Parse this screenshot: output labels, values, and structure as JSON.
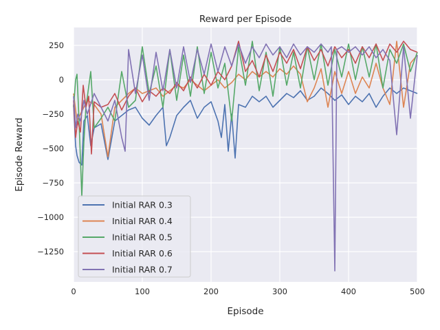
{
  "chart_data": {
    "type": "line",
    "title": "Reward per Episode",
    "xlabel": "Episode",
    "ylabel": "Episode Reward",
    "xlim": [
      0,
      500
    ],
    "ylim": [
      -1470,
      380
    ],
    "xticks": [
      0,
      100,
      200,
      300,
      400,
      500
    ],
    "yticks": [
      250,
      0,
      -250,
      -500,
      -750,
      -1000,
      -1250
    ],
    "grid": true,
    "legend_position": "lower-left",
    "background": "#eaeaf2",
    "series": [
      {
        "name": "Initial RAR 0.3",
        "color": "#4c72b0",
        "points": [
          [
            0,
            -180
          ],
          [
            3,
            -480
          ],
          [
            5,
            -550
          ],
          [
            8,
            -600
          ],
          [
            12,
            -620
          ],
          [
            15,
            -300
          ],
          [
            20,
            -260
          ],
          [
            25,
            -480
          ],
          [
            30,
            -350
          ],
          [
            40,
            -320
          ],
          [
            50,
            -580
          ],
          [
            60,
            -300
          ],
          [
            70,
            -260
          ],
          [
            80,
            -220
          ],
          [
            90,
            -200
          ],
          [
            100,
            -280
          ],
          [
            110,
            -330
          ],
          [
            120,
            -260
          ],
          [
            130,
            -200
          ],
          [
            135,
            -480
          ],
          [
            140,
            -420
          ],
          [
            150,
            -260
          ],
          [
            160,
            -200
          ],
          [
            170,
            -150
          ],
          [
            180,
            -280
          ],
          [
            190,
            -200
          ],
          [
            200,
            -160
          ],
          [
            210,
            -300
          ],
          [
            215,
            -420
          ],
          [
            220,
            -180
          ],
          [
            225,
            -520
          ],
          [
            230,
            -250
          ],
          [
            235,
            -570
          ],
          [
            240,
            -180
          ],
          [
            250,
            -200
          ],
          [
            260,
            -120
          ],
          [
            270,
            -160
          ],
          [
            280,
            -120
          ],
          [
            290,
            -200
          ],
          [
            300,
            -150
          ],
          [
            310,
            -100
          ],
          [
            320,
            -130
          ],
          [
            330,
            -80
          ],
          [
            340,
            -150
          ],
          [
            350,
            -120
          ],
          [
            360,
            -60
          ],
          [
            370,
            -100
          ],
          [
            380,
            -150
          ],
          [
            390,
            -110
          ],
          [
            400,
            -180
          ],
          [
            410,
            -120
          ],
          [
            420,
            -160
          ],
          [
            430,
            -100
          ],
          [
            440,
            -200
          ],
          [
            450,
            -120
          ],
          [
            460,
            -60
          ],
          [
            470,
            -100
          ],
          [
            480,
            -60
          ],
          [
            490,
            -80
          ],
          [
            500,
            -100
          ]
        ]
      },
      {
        "name": "Initial RAR 0.4",
        "color": "#dd8452",
        "points": [
          [
            0,
            -100
          ],
          [
            5,
            -300
          ],
          [
            10,
            -250
          ],
          [
            15,
            -200
          ],
          [
            20,
            -150
          ],
          [
            30,
            -180
          ],
          [
            40,
            -250
          ],
          [
            50,
            -560
          ],
          [
            60,
            -200
          ],
          [
            70,
            -150
          ],
          [
            80,
            -100
          ],
          [
            90,
            -60
          ],
          [
            100,
            -100
          ],
          [
            110,
            -80
          ],
          [
            120,
            -60
          ],
          [
            130,
            -120
          ],
          [
            140,
            -80
          ],
          [
            150,
            -40
          ],
          [
            160,
            -60
          ],
          [
            170,
            0
          ],
          [
            180,
            -40
          ],
          [
            190,
            -80
          ],
          [
            200,
            -40
          ],
          [
            210,
            0
          ],
          [
            220,
            -60
          ],
          [
            230,
            -20
          ],
          [
            240,
            40
          ],
          [
            250,
            0
          ],
          [
            260,
            60
          ],
          [
            270,
            20
          ],
          [
            280,
            60
          ],
          [
            290,
            20
          ],
          [
            300,
            80
          ],
          [
            310,
            40
          ],
          [
            320,
            100
          ],
          [
            330,
            40
          ],
          [
            340,
            -160
          ],
          [
            350,
            -60
          ],
          [
            360,
            80
          ],
          [
            370,
            -200
          ],
          [
            380,
            60
          ],
          [
            390,
            -100
          ],
          [
            400,
            60
          ],
          [
            410,
            -100
          ],
          [
            420,
            20
          ],
          [
            430,
            -60
          ],
          [
            440,
            120
          ],
          [
            450,
            -60
          ],
          [
            460,
            -180
          ],
          [
            470,
            280
          ],
          [
            480,
            -200
          ],
          [
            490,
            120
          ],
          [
            500,
            180
          ]
        ]
      },
      {
        "name": "Initial RAR 0.5",
        "color": "#55a868",
        "points": [
          [
            0,
            -200
          ],
          [
            3,
            0
          ],
          [
            5,
            40
          ],
          [
            8,
            -300
          ],
          [
            12,
            -850
          ],
          [
            15,
            -450
          ],
          [
            18,
            -200
          ],
          [
            25,
            60
          ],
          [
            30,
            -350
          ],
          [
            40,
            -280
          ],
          [
            50,
            -200
          ],
          [
            60,
            -300
          ],
          [
            70,
            60
          ],
          [
            80,
            -200
          ],
          [
            90,
            -150
          ],
          [
            100,
            240
          ],
          [
            110,
            -100
          ],
          [
            120,
            100
          ],
          [
            130,
            -200
          ],
          [
            140,
            220
          ],
          [
            150,
            -150
          ],
          [
            160,
            180
          ],
          [
            170,
            -120
          ],
          [
            180,
            240
          ],
          [
            190,
            -100
          ],
          [
            200,
            200
          ],
          [
            210,
            -60
          ],
          [
            220,
            120
          ],
          [
            230,
            -300
          ],
          [
            240,
            240
          ],
          [
            250,
            -40
          ],
          [
            260,
            280
          ],
          [
            270,
            -80
          ],
          [
            280,
            200
          ],
          [
            290,
            -120
          ],
          [
            300,
            240
          ],
          [
            310,
            -40
          ],
          [
            320,
            200
          ],
          [
            330,
            -60
          ],
          [
            340,
            240
          ],
          [
            350,
            0
          ],
          [
            360,
            260
          ],
          [
            370,
            -40
          ],
          [
            380,
            220
          ],
          [
            390,
            20
          ],
          [
            400,
            260
          ],
          [
            410,
            0
          ],
          [
            420,
            240
          ],
          [
            430,
            20
          ],
          [
            440,
            260
          ],
          [
            450,
            -60
          ],
          [
            460,
            220
          ],
          [
            470,
            120
          ],
          [
            480,
            260
          ],
          [
            490,
            60
          ],
          [
            500,
            200
          ]
        ]
      },
      {
        "name": "Initial RAR 0.6",
        "color": "#c44e52",
        "points": [
          [
            0,
            -150
          ],
          [
            3,
            -420
          ],
          [
            6,
            -300
          ],
          [
            10,
            -380
          ],
          [
            14,
            -40
          ],
          [
            18,
            -200
          ],
          [
            22,
            -120
          ],
          [
            26,
            -540
          ],
          [
            30,
            -160
          ],
          [
            40,
            -200
          ],
          [
            50,
            -180
          ],
          [
            60,
            -100
          ],
          [
            70,
            -220
          ],
          [
            80,
            -120
          ],
          [
            90,
            -60
          ],
          [
            100,
            -160
          ],
          [
            110,
            -80
          ],
          [
            120,
            -120
          ],
          [
            130,
            -60
          ],
          [
            140,
            -100
          ],
          [
            150,
            -20
          ],
          [
            160,
            -80
          ],
          [
            170,
            20
          ],
          [
            180,
            -60
          ],
          [
            190,
            40
          ],
          [
            200,
            -40
          ],
          [
            210,
            60
          ],
          [
            220,
            0
          ],
          [
            230,
            100
          ],
          [
            240,
            280
          ],
          [
            250,
            60
          ],
          [
            260,
            140
          ],
          [
            270,
            20
          ],
          [
            280,
            180
          ],
          [
            290,
            60
          ],
          [
            300,
            200
          ],
          [
            310,
            120
          ],
          [
            320,
            220
          ],
          [
            330,
            80
          ],
          [
            340,
            240
          ],
          [
            350,
            140
          ],
          [
            360,
            220
          ],
          [
            370,
            100
          ],
          [
            380,
            240
          ],
          [
            390,
            160
          ],
          [
            400,
            220
          ],
          [
            410,
            120
          ],
          [
            420,
            240
          ],
          [
            430,
            160
          ],
          [
            440,
            260
          ],
          [
            450,
            140
          ],
          [
            460,
            260
          ],
          [
            470,
            200
          ],
          [
            480,
            280
          ],
          [
            490,
            220
          ],
          [
            500,
            200
          ]
        ]
      },
      {
        "name": "Initial RAR 0.7",
        "color": "#8172b3",
        "points": [
          [
            0,
            -120
          ],
          [
            3,
            -350
          ],
          [
            6,
            -250
          ],
          [
            10,
            -300
          ],
          [
            15,
            -150
          ],
          [
            20,
            -250
          ],
          [
            30,
            -100
          ],
          [
            40,
            -200
          ],
          [
            50,
            -300
          ],
          [
            60,
            -150
          ],
          [
            70,
            -420
          ],
          [
            75,
            -520
          ],
          [
            80,
            220
          ],
          [
            90,
            -100
          ],
          [
            100,
            180
          ],
          [
            110,
            -150
          ],
          [
            120,
            200
          ],
          [
            130,
            -80
          ],
          [
            140,
            220
          ],
          [
            150,
            -60
          ],
          [
            160,
            240
          ],
          [
            170,
            -20
          ],
          [
            180,
            220
          ],
          [
            190,
            40
          ],
          [
            200,
            260
          ],
          [
            210,
            60
          ],
          [
            220,
            240
          ],
          [
            230,
            100
          ],
          [
            240,
            260
          ],
          [
            250,
            120
          ],
          [
            260,
            240
          ],
          [
            270,
            160
          ],
          [
            280,
            260
          ],
          [
            290,
            180
          ],
          [
            300,
            240
          ],
          [
            310,
            160
          ],
          [
            320,
            260
          ],
          [
            330,
            180
          ],
          [
            340,
            240
          ],
          [
            350,
            200
          ],
          [
            360,
            260
          ],
          [
            370,
            200
          ],
          [
            375,
            240
          ],
          [
            380,
            -1390
          ],
          [
            383,
            220
          ],
          [
            390,
            240
          ],
          [
            400,
            200
          ],
          [
            410,
            240
          ],
          [
            420,
            180
          ],
          [
            430,
            240
          ],
          [
            440,
            160
          ],
          [
            450,
            220
          ],
          [
            460,
            140
          ],
          [
            470,
            -400
          ],
          [
            480,
            240
          ],
          [
            490,
            -280
          ],
          [
            500,
            180
          ]
        ]
      }
    ]
  }
}
